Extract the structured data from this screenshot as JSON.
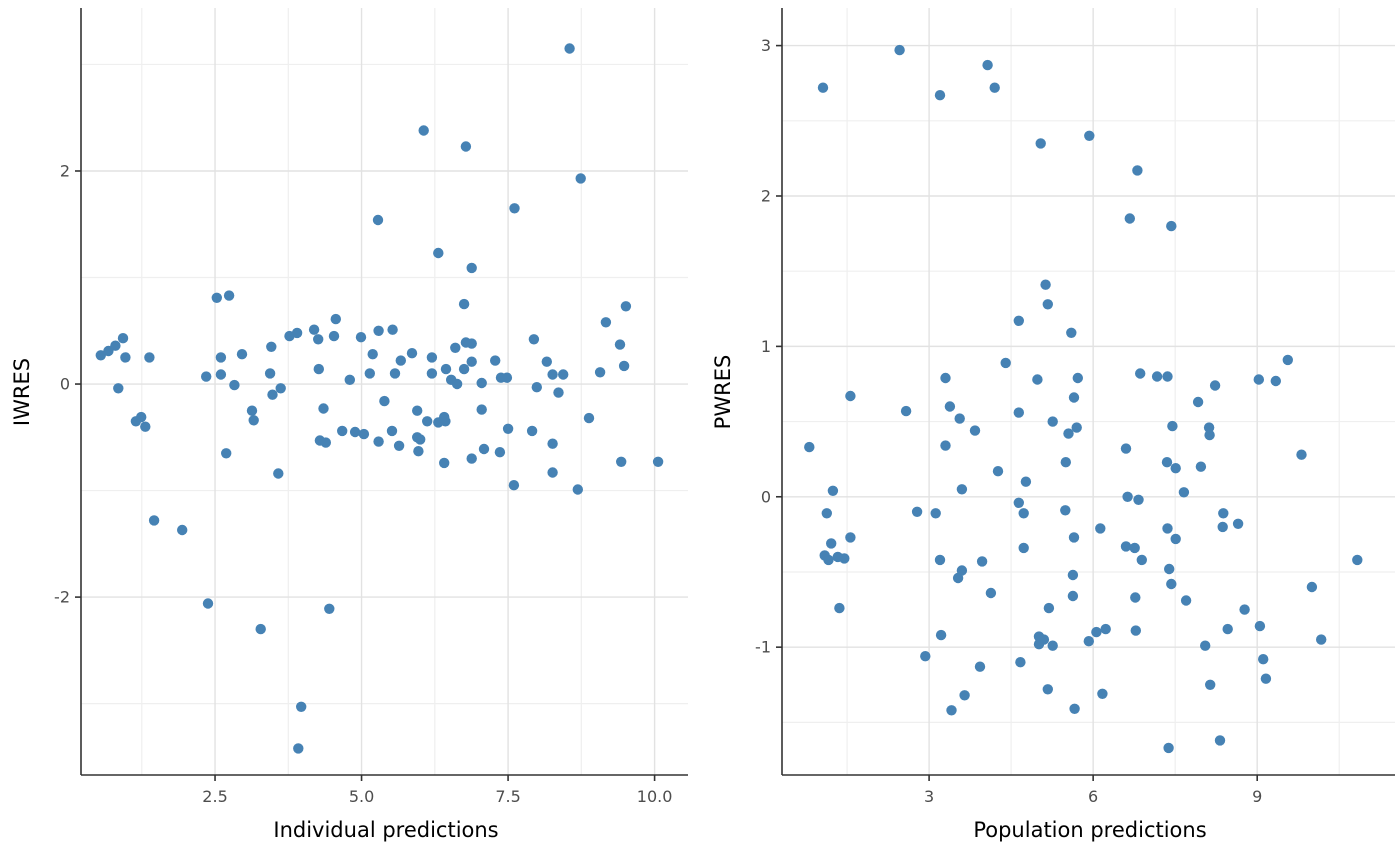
{
  "figure": {
    "background": "#FFFFFF"
  },
  "style": {
    "point_color": "#4682B4",
    "point_radius": 5.2,
    "grid_major_color": "#E2E2E2",
    "grid_minor_color": "#EFEFEF",
    "axis_line_color": "#333333",
    "tick_mark_color": "#333333",
    "tick_label_color": "#4D4D4D",
    "axis_title_color": "#000000",
    "tick_label_font_px": 16,
    "axis_title_font_px": 21
  },
  "chart_data": [
    {
      "type": "scatter",
      "title": "",
      "xlabel": "Individual predictions",
      "ylabel": "IWRES",
      "legend": "none",
      "grid": true,
      "xlim": [
        0.213,
        10.57
      ],
      "ylim": [
        -3.67,
        3.53
      ],
      "x_major_ticks": [
        2.5,
        5.0,
        7.5,
        10.0
      ],
      "x_tick_labels": [
        "2.5",
        "5.0",
        "7.5",
        "10.0"
      ],
      "y_major_ticks": [
        2,
        0,
        -2
      ],
      "y_tick_labels": [
        "2",
        "0",
        "-2"
      ],
      "x_minor_ticks": [
        1.25,
        3.75,
        6.25,
        8.75
      ],
      "y_minor_ticks": [
        3,
        1,
        -1,
        -3
      ],
      "points": [
        [
          0.55,
          0.27
        ],
        [
          0.68,
          0.31
        ],
        [
          0.8,
          0.36
        ],
        [
          0.93,
          0.43
        ],
        [
          0.97,
          0.25
        ],
        [
          0.85,
          -0.04
        ],
        [
          1.15,
          -0.35
        ],
        [
          1.24,
          -0.31
        ],
        [
          1.31,
          -0.4
        ],
        [
          1.38,
          0.25
        ],
        [
          1.46,
          -1.28
        ],
        [
          1.94,
          -1.37
        ],
        [
          2.35,
          0.07
        ],
        [
          2.53,
          0.81
        ],
        [
          2.6,
          0.09
        ],
        [
          2.6,
          0.25
        ],
        [
          2.74,
          0.83
        ],
        [
          2.69,
          -0.65
        ],
        [
          2.83,
          -0.01
        ],
        [
          2.96,
          0.28
        ],
        [
          2.38,
          -2.06
        ],
        [
          3.28,
          -2.3
        ],
        [
          3.13,
          -0.25
        ],
        [
          3.16,
          -0.34
        ],
        [
          3.44,
          0.1
        ],
        [
          3.46,
          0.35
        ],
        [
          3.48,
          -0.1
        ],
        [
          3.58,
          -0.84
        ],
        [
          3.62,
          -0.04
        ],
        [
          3.77,
          0.45
        ],
        [
          3.9,
          0.48
        ],
        [
          3.92,
          -3.42
        ],
        [
          3.97,
          -3.03
        ],
        [
          4.19,
          0.51
        ],
        [
          4.26,
          0.42
        ],
        [
          4.27,
          0.14
        ],
        [
          4.29,
          -0.53
        ],
        [
          4.35,
          -0.23
        ],
        [
          4.39,
          -0.55
        ],
        [
          4.45,
          -2.11
        ],
        [
          4.53,
          0.45
        ],
        [
          4.56,
          0.61
        ],
        [
          4.67,
          -0.44
        ],
        [
          4.8,
          0.04
        ],
        [
          4.89,
          -0.45
        ],
        [
          4.99,
          0.44
        ],
        [
          5.04,
          -0.47
        ],
        [
          5.14,
          0.1
        ],
        [
          5.19,
          0.28
        ],
        [
          5.28,
          1.54
        ],
        [
          5.29,
          0.5
        ],
        [
          5.29,
          -0.54
        ],
        [
          5.39,
          -0.16
        ],
        [
          5.52,
          -0.44
        ],
        [
          5.53,
          0.51
        ],
        [
          5.57,
          0.1
        ],
        [
          5.64,
          -0.58
        ],
        [
          5.67,
          0.22
        ],
        [
          5.86,
          0.29
        ],
        [
          5.95,
          -0.25
        ],
        [
          5.95,
          -0.5
        ],
        [
          5.97,
          -0.63
        ],
        [
          6.0,
          -0.52
        ],
        [
          6.06,
          2.38
        ],
        [
          6.12,
          -0.35
        ],
        [
          6.2,
          0.25
        ],
        [
          6.2,
          0.1
        ],
        [
          6.31,
          1.23
        ],
        [
          6.31,
          -0.36
        ],
        [
          6.41,
          -0.31
        ],
        [
          6.41,
          -0.74
        ],
        [
          6.43,
          -0.35
        ],
        [
          6.44,
          0.14
        ],
        [
          6.53,
          0.04
        ],
        [
          6.6,
          0.34
        ],
        [
          6.63,
          0.0
        ],
        [
          6.75,
          0.75
        ],
        [
          6.75,
          0.14
        ],
        [
          6.78,
          2.23
        ],
        [
          6.78,
          0.39
        ],
        [
          6.88,
          1.09
        ],
        [
          6.88,
          0.38
        ],
        [
          6.88,
          0.21
        ],
        [
          6.88,
          -0.7
        ],
        [
          7.05,
          0.01
        ],
        [
          7.05,
          -0.24
        ],
        [
          7.09,
          -0.61
        ],
        [
          7.28,
          0.22
        ],
        [
          7.36,
          -0.64
        ],
        [
          7.38,
          0.06
        ],
        [
          7.48,
          0.06
        ],
        [
          7.5,
          -0.42
        ],
        [
          7.6,
          -0.95
        ],
        [
          7.61,
          1.65
        ],
        [
          7.91,
          -0.44
        ],
        [
          7.94,
          0.42
        ],
        [
          7.99,
          -0.03
        ],
        [
          8.16,
          0.21
        ],
        [
          8.26,
          0.09
        ],
        [
          8.26,
          -0.56
        ],
        [
          8.26,
          -0.83
        ],
        [
          8.36,
          -0.08
        ],
        [
          8.44,
          0.09
        ],
        [
          8.55,
          3.15
        ],
        [
          8.69,
          -0.99
        ],
        [
          8.74,
          1.93
        ],
        [
          8.88,
          -0.32
        ],
        [
          9.07,
          0.11
        ],
        [
          9.17,
          0.58
        ],
        [
          9.41,
          0.37
        ],
        [
          9.43,
          -0.73
        ],
        [
          9.48,
          0.17
        ],
        [
          9.51,
          0.73
        ],
        [
          10.06,
          -0.73
        ]
      ]
    },
    {
      "type": "scatter",
      "title": "",
      "xlabel": "Population predictions",
      "ylabel": "PWRES",
      "legend": "none",
      "grid": true,
      "xlim": [
        0.31,
        11.52
      ],
      "ylim": [
        -1.85,
        3.25
      ],
      "x_major_ticks": [
        3,
        6,
        9
      ],
      "x_tick_labels": [
        "3",
        "6",
        "9"
      ],
      "y_major_ticks": [
        3,
        2,
        1,
        0,
        -1
      ],
      "y_tick_labels": [
        "3",
        "2",
        "1",
        "0",
        "-1"
      ],
      "x_minor_ticks": [
        1.5,
        4.5,
        7.5,
        10.5
      ],
      "y_minor_ticks": [
        2.5,
        1.5,
        0.5,
        -0.5,
        -1.5
      ],
      "points": [
        [
          2.46,
          2.97
        ],
        [
          1.06,
          2.72
        ],
        [
          4.07,
          2.87
        ],
        [
          4.2,
          2.72
        ],
        [
          3.2,
          2.67
        ],
        [
          5.04,
          2.35
        ],
        [
          5.93,
          2.4
        ],
        [
          6.81,
          2.17
        ],
        [
          6.67,
          1.85
        ],
        [
          7.43,
          1.8
        ],
        [
          5.13,
          1.41
        ],
        [
          5.17,
          1.28
        ],
        [
          4.64,
          1.17
        ],
        [
          5.6,
          1.09
        ],
        [
          4.4,
          0.89
        ],
        [
          3.3,
          0.79
        ],
        [
          4.98,
          0.78
        ],
        [
          5.72,
          0.79
        ],
        [
          1.56,
          0.67
        ],
        [
          5.65,
          0.66
        ],
        [
          2.58,
          0.57
        ],
        [
          3.38,
          0.6
        ],
        [
          3.56,
          0.52
        ],
        [
          4.64,
          0.56
        ],
        [
          3.84,
          0.44
        ],
        [
          5.26,
          0.5
        ],
        [
          5.55,
          0.42
        ],
        [
          5.7,
          0.46
        ],
        [
          0.81,
          0.33
        ],
        [
          3.3,
          0.34
        ],
        [
          5.5,
          0.23
        ],
        [
          4.26,
          0.17
        ],
        [
          4.77,
          0.1
        ],
        [
          3.6,
          0.05
        ],
        [
          1.24,
          0.04
        ],
        [
          4.64,
          -0.04
        ],
        [
          1.13,
          -0.11
        ],
        [
          2.78,
          -0.1
        ],
        [
          3.12,
          -0.11
        ],
        [
          4.73,
          -0.11
        ],
        [
          5.49,
          -0.09
        ],
        [
          9.56,
          0.91
        ],
        [
          6.86,
          0.82
        ],
        [
          7.17,
          0.8
        ],
        [
          7.36,
          0.8
        ],
        [
          9.03,
          0.78
        ],
        [
          9.34,
          0.77
        ],
        [
          8.23,
          0.74
        ],
        [
          7.92,
          0.63
        ],
        [
          7.45,
          0.47
        ],
        [
          8.12,
          0.46
        ],
        [
          8.13,
          0.41
        ],
        [
          6.6,
          0.32
        ],
        [
          9.81,
          0.28
        ],
        [
          7.35,
          0.23
        ],
        [
          7.51,
          0.19
        ],
        [
          7.97,
          0.2
        ],
        [
          7.66,
          0.03
        ],
        [
          6.63,
          0.0
        ],
        [
          6.83,
          -0.02
        ],
        [
          8.38,
          -0.11
        ],
        [
          8.65,
          -0.18
        ],
        [
          1.56,
          -0.27
        ],
        [
          1.21,
          -0.31
        ],
        [
          1.09,
          -0.39
        ],
        [
          1.16,
          -0.42
        ],
        [
          1.33,
          -0.4
        ],
        [
          1.45,
          -0.41
        ],
        [
          3.2,
          -0.42
        ],
        [
          3.97,
          -0.43
        ],
        [
          3.6,
          -0.49
        ],
        [
          3.53,
          -0.54
        ],
        [
          4.73,
          -0.34
        ],
        [
          5.65,
          -0.27
        ],
        [
          5.63,
          -0.52
        ],
        [
          4.13,
          -0.64
        ],
        [
          1.36,
          -0.74
        ],
        [
          5.19,
          -0.74
        ],
        [
          5.63,
          -0.66
        ],
        [
          3.22,
          -0.92
        ],
        [
          5.01,
          -0.93
        ],
        [
          5.1,
          -0.95
        ],
        [
          5.01,
          -0.98
        ],
        [
          5.26,
          -0.99
        ],
        [
          2.93,
          -1.06
        ],
        [
          4.67,
          -1.1
        ],
        [
          3.93,
          -1.13
        ],
        [
          5.17,
          -1.28
        ],
        [
          3.65,
          -1.32
        ],
        [
          5.66,
          -1.41
        ],
        [
          3.41,
          -1.42
        ],
        [
          6.13,
          -0.21
        ],
        [
          7.36,
          -0.21
        ],
        [
          8.37,
          -0.2
        ],
        [
          7.51,
          -0.28
        ],
        [
          6.6,
          -0.33
        ],
        [
          6.76,
          -0.34
        ],
        [
          6.89,
          -0.42
        ],
        [
          10.83,
          -0.42
        ],
        [
          7.39,
          -0.48
        ],
        [
          7.43,
          -0.58
        ],
        [
          10.0,
          -0.6
        ],
        [
          6.77,
          -0.67
        ],
        [
          7.7,
          -0.69
        ],
        [
          8.77,
          -0.75
        ],
        [
          9.05,
          -0.86
        ],
        [
          8.46,
          -0.88
        ],
        [
          6.06,
          -0.9
        ],
        [
          6.23,
          -0.88
        ],
        [
          6.78,
          -0.89
        ],
        [
          5.92,
          -0.96
        ],
        [
          8.05,
          -0.99
        ],
        [
          10.17,
          -0.95
        ],
        [
          9.11,
          -1.08
        ],
        [
          9.16,
          -1.21
        ],
        [
          8.14,
          -1.25
        ],
        [
          6.17,
          -1.31
        ],
        [
          8.32,
          -1.62
        ],
        [
          7.38,
          -1.67
        ]
      ]
    }
  ]
}
